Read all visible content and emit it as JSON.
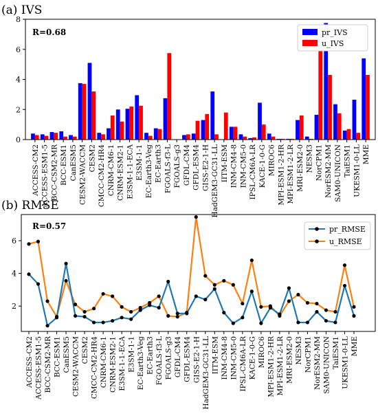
{
  "chart_data": [
    {
      "type": "bar",
      "panel_label": "(a) IVS",
      "annotation": "R=0.68",
      "categories": [
        "ACCESS-CM2",
        "ACCESS-ESM1-5",
        "BCC-CSM2-MR",
        "BCC-ESM1",
        "CanESM5",
        "CESM2-WACCM",
        "CESM2",
        "CMCC-CM2-HR4",
        "CNRM-CM6-1",
        "CNRM-ESM2-1",
        "E3SM-1-1-ECA",
        "E3SM-1-1",
        "EC-Earth3-Veg",
        "EC-Earth3",
        "FGOALS-f3-L",
        "FGOALS-g3",
        "GFDL-CM4",
        "GFDL-ESM4",
        "GISS-E2-1-H",
        "HadGEM3-GC31-LL",
        "IITM-ESM",
        "INM-CM4-8",
        "INM-CM5-0",
        "IPSL-CM6A-LR",
        "KACE-1-0-G",
        "MIROC6",
        "MPI-ESM1-2-HR",
        "MPI-ESM1-2-LR",
        "MRI-ESM2-0",
        "NESM3",
        "NorCPM1",
        "NorESM2-MM",
        "SAM0-UNICON",
        "TaiESM1",
        "UKESM1-0-LL",
        "MME"
      ],
      "series": [
        {
          "name": "pr_IVS",
          "color": "#0000ff",
          "values": [
            0.4,
            0.35,
            0.5,
            0.55,
            0.3,
            3.75,
            5.1,
            0.45,
            0.75,
            2.0,
            2.05,
            2.95,
            0.45,
            0.75,
            2.75,
            0.0,
            0.3,
            0.4,
            1.3,
            3.2,
            0.0,
            0.85,
            0.35,
            0.1,
            2.45,
            0.4,
            0.05,
            0.05,
            1.3,
            0.2,
            1.65,
            7.75,
            2.35,
            0.6,
            2.65,
            5.4
          ]
        },
        {
          "name": "u_IVS",
          "color": "#ff0000",
          "values": [
            0.3,
            0.25,
            0.45,
            0.2,
            0.2,
            3.7,
            3.2,
            0.35,
            1.6,
            1.2,
            2.2,
            2.25,
            0.25,
            0.7,
            5.75,
            0.0,
            0.35,
            1.25,
            1.7,
            0.35,
            1.8,
            0.85,
            0.2,
            0.15,
            1.0,
            0.2,
            0.05,
            0.05,
            1.6,
            0.05,
            6.05,
            4.3,
            1.75,
            0.7,
            0.45,
            4.3
          ]
        }
      ],
      "ylim": [
        0,
        8
      ],
      "yticks": [
        0,
        2,
        4,
        6,
        8
      ],
      "legend": "top-right",
      "grid": false
    },
    {
      "type": "line",
      "panel_label": "(b) RMSE",
      "annotation": "R=0.57",
      "categories": [
        "ACCESS-CM2",
        "ACCESS-ESM1-5",
        "BCC-CSM2-MR",
        "BCC-ESM1",
        "CanESM5",
        "CESM2-WACCM",
        "CESM2",
        "CMCC-CM2-HR4",
        "CNRM-CM6-1",
        "CNRM-ESM2-1",
        "E3SM-1-1-ECA",
        "E3SM-1-1",
        "EC-Earth3-Veg",
        "EC-Earth3",
        "FGOALS-f3-L",
        "FGOALS-g3",
        "GFDL-CM4",
        "GFDL-ESM4",
        "GISS-E2-1-H",
        "HadGEM3-GC31-LL",
        "IITM-ESM",
        "INM-CM4-8",
        "INM-CM5-0",
        "IPSL-CM6A-LR",
        "KACE-1-0-G",
        "MIROC6",
        "MPI-ESM1-2-HR",
        "MPI-ESM1-2-LR",
        "MRI-ESM2-0",
        "NESM3",
        "NorCPM1",
        "NorESM2-MM",
        "SAM0-UNICON",
        "TaiESM1",
        "UKESM1-0-LL",
        "MME"
      ],
      "series": [
        {
          "name": "pr_RMSE",
          "color": "#1f77b4",
          "values": [
            3.95,
            3.35,
            0.8,
            1.3,
            4.6,
            1.4,
            1.35,
            1.0,
            1.0,
            1.1,
            1.3,
            1.2,
            1.75,
            2.05,
            1.9,
            3.5,
            1.55,
            1.55,
            2.6,
            2.4,
            3.05,
            1.6,
            0.95,
            1.3,
            2.9,
            0.95,
            1.9,
            1.5,
            3.1,
            1.0,
            1.0,
            1.65,
            1.1,
            1.0,
            3.25,
            1.4
          ]
        },
        {
          "name": "u_RMSE",
          "color": "#ff7f0e",
          "values": [
            5.8,
            5.95,
            2.3,
            1.35,
            3.55,
            2.1,
            1.65,
            1.85,
            2.75,
            2.6,
            1.95,
            1.65,
            1.9,
            2.2,
            2.6,
            1.4,
            1.35,
            1.6,
            7.45,
            3.85,
            3.3,
            3.55,
            3.3,
            2.15,
            4.8,
            1.95,
            2.0,
            1.4,
            2.3,
            2.7,
            2.2,
            2.15,
            1.75,
            1.65,
            4.5,
            1.95
          ]
        }
      ],
      "ylim": [
        0.45,
        7.6
      ],
      "yticks": [
        2,
        4,
        6
      ],
      "legend": "top-right",
      "grid": false
    }
  ]
}
